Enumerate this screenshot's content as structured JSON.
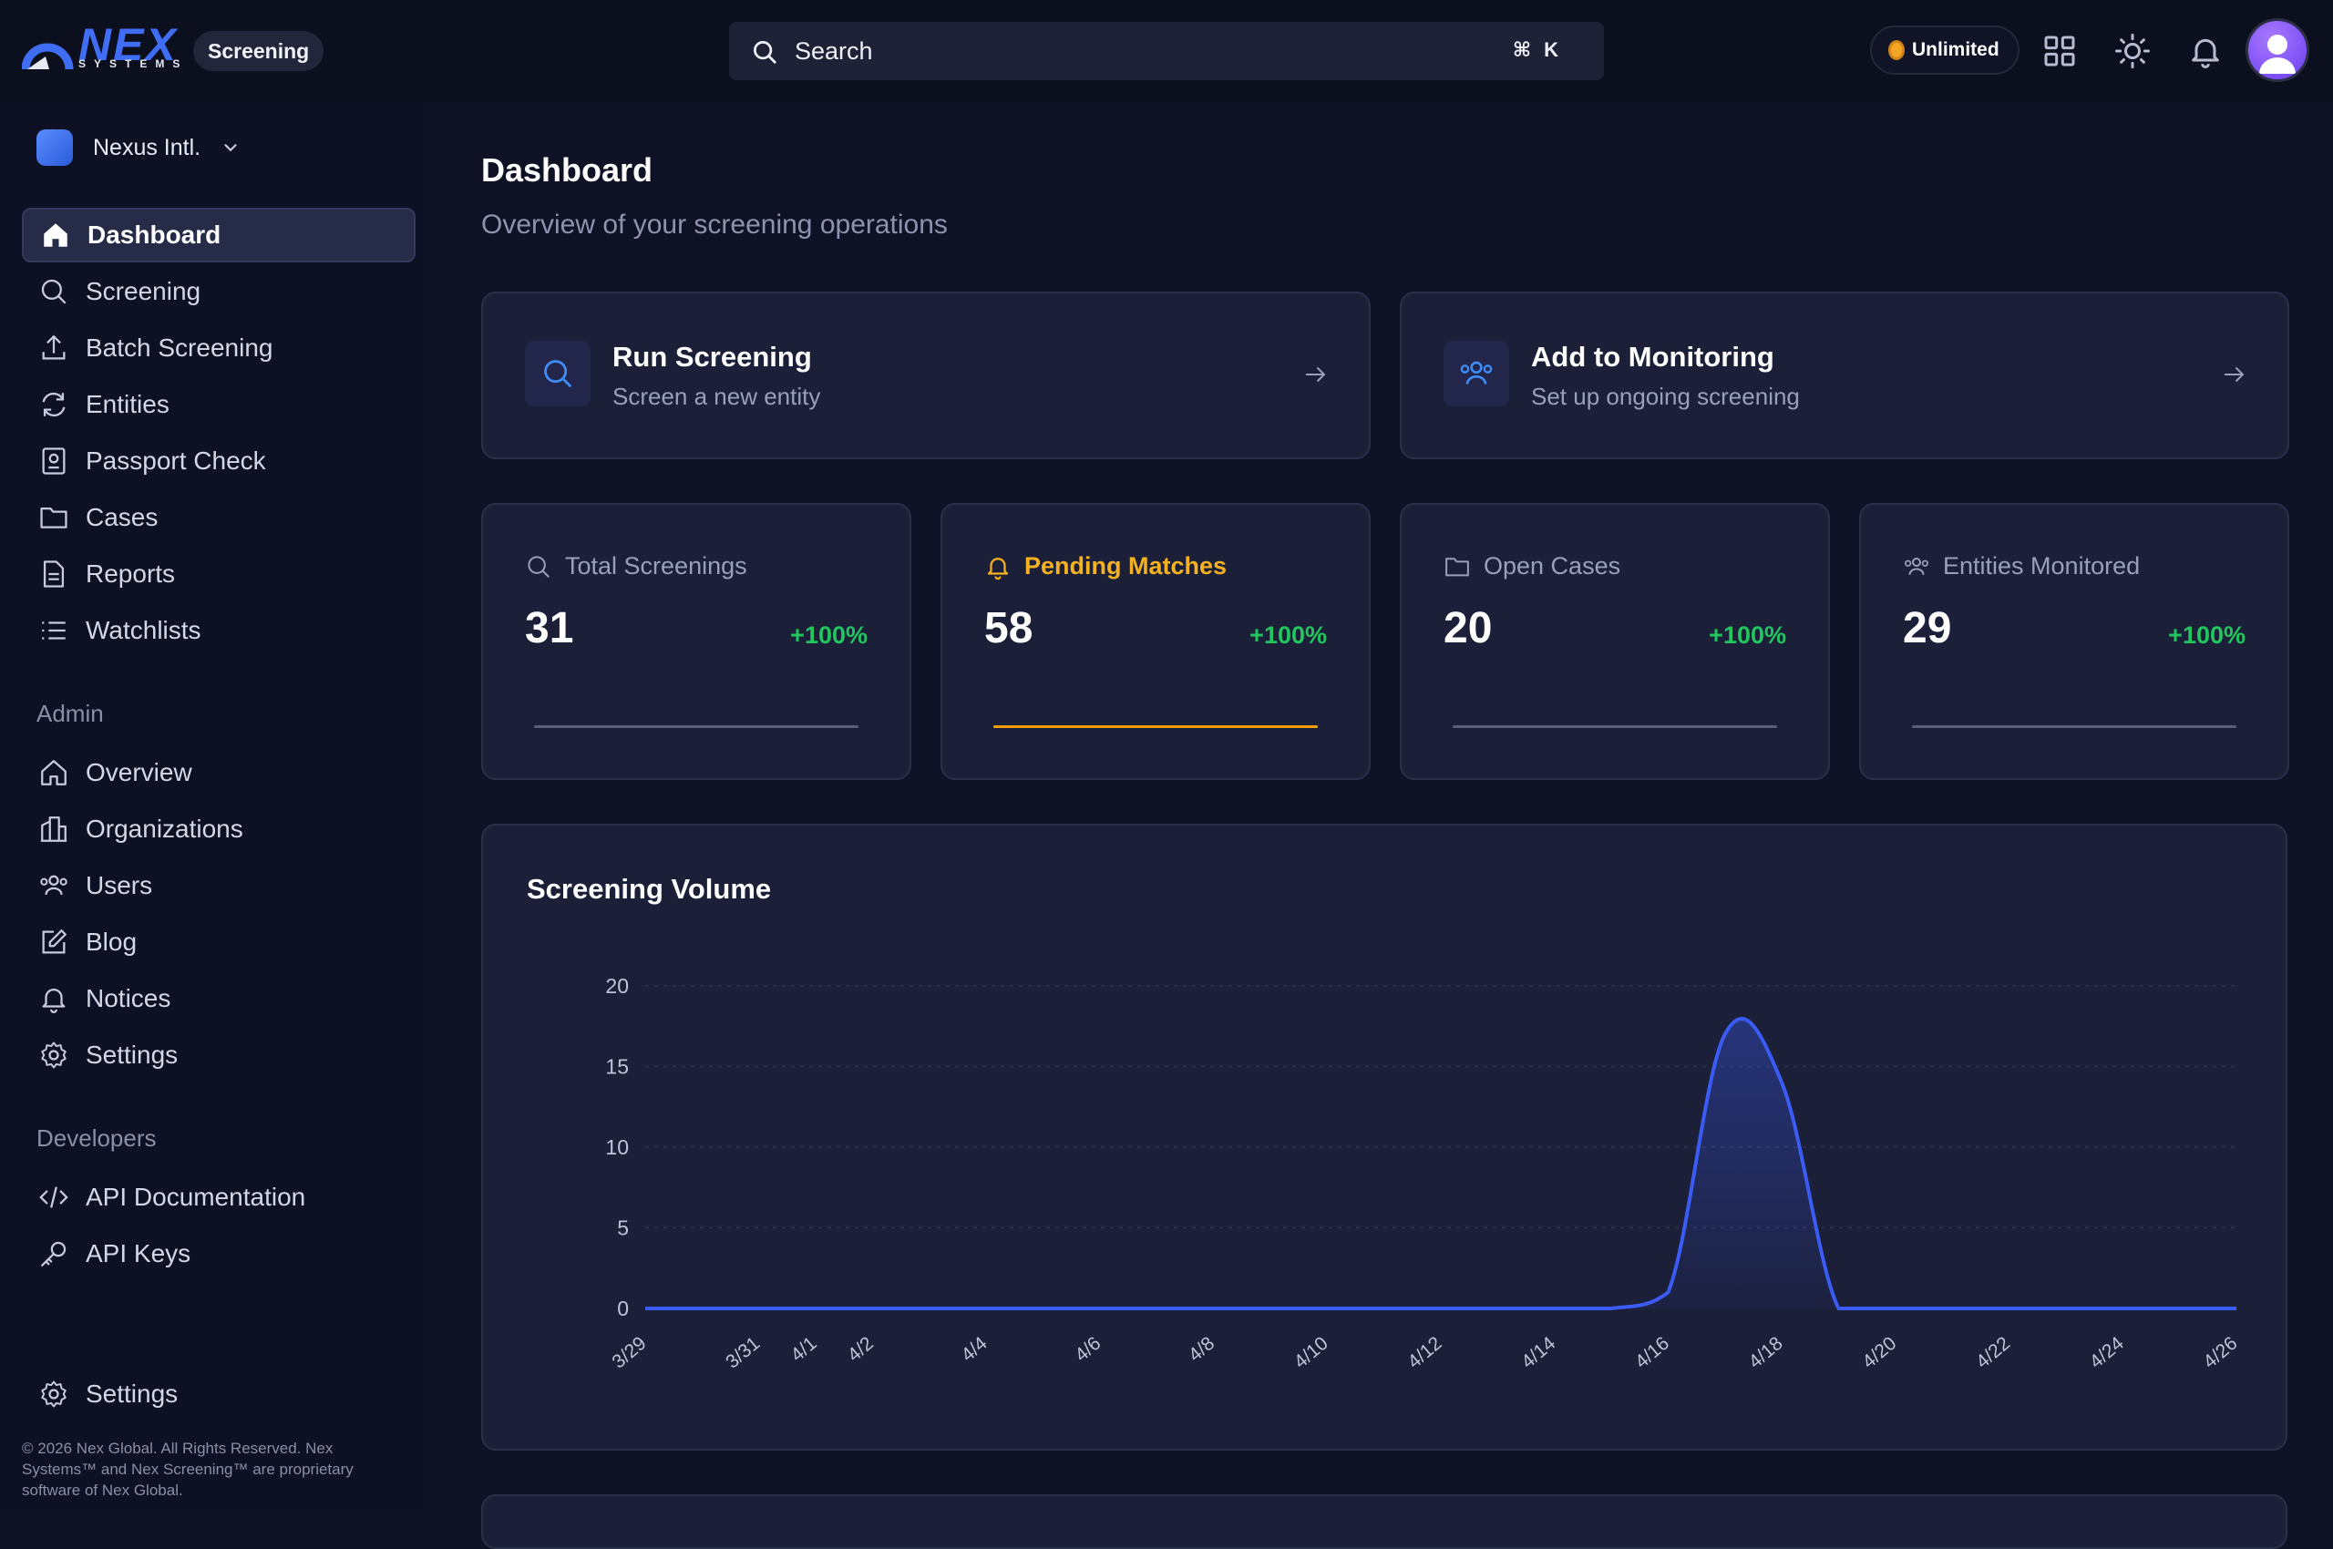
{
  "header": {
    "logo_text": "NEX",
    "logo_sub": "SYSTEMS",
    "product": "Screening",
    "search_placeholder": "Search",
    "shortcut": "⌘K",
    "plan": "Unlimited"
  },
  "sidebar": {
    "org_name": "Nexus Intl.",
    "main": [
      {
        "label": "Dashboard",
        "icon": "home-icon",
        "active": true
      },
      {
        "label": "Screening",
        "icon": "search-icon"
      },
      {
        "label": "Batch Screening",
        "icon": "upload-icon"
      },
      {
        "label": "Entities",
        "icon": "refresh-icon"
      },
      {
        "label": "Passport Check",
        "icon": "passport-icon"
      },
      {
        "label": "Cases",
        "icon": "folder-icon"
      },
      {
        "label": "Reports",
        "icon": "document-icon"
      },
      {
        "label": "Watchlists",
        "icon": "list-icon"
      }
    ],
    "admin_label": "Admin",
    "admin": [
      {
        "label": "Overview",
        "icon": "home-icon"
      },
      {
        "label": "Organizations",
        "icon": "building-icon"
      },
      {
        "label": "Users",
        "icon": "users-icon"
      },
      {
        "label": "Blog",
        "icon": "edit-icon"
      },
      {
        "label": "Notices",
        "icon": "bell-icon"
      },
      {
        "label": "Settings",
        "icon": "gear-icon"
      }
    ],
    "dev_label": "Developers",
    "dev": [
      {
        "label": "API Documentation",
        "icon": "code-icon"
      },
      {
        "label": "API Keys",
        "icon": "key-icon"
      }
    ],
    "bottom_settings": "Settings",
    "footer": "© 2026 Nex Global. All Rights Reserved. Nex Systems™ and Nex Screening™ are proprietary software of Nex Global."
  },
  "main": {
    "title": "Dashboard",
    "subtitle": "Overview of your screening operations",
    "actions": [
      {
        "title": "Run Screening",
        "subtitle": "Screen a new entity",
        "icon": "search-icon"
      },
      {
        "title": "Add to Monitoring",
        "subtitle": "Set up ongoing screening",
        "icon": "users-icon"
      }
    ],
    "stats": [
      {
        "label": "Total Screenings",
        "value": "31",
        "delta": "+100%",
        "icon": "search-icon"
      },
      {
        "label": "Pending Matches",
        "value": "58",
        "delta": "+100%",
        "icon": "bell-icon"
      },
      {
        "label": "Open Cases",
        "value": "20",
        "delta": "+100%",
        "icon": "folder-icon"
      },
      {
        "label": "Entities Monitored",
        "value": "29",
        "delta": "+100%",
        "icon": "users-icon"
      }
    ]
  },
  "colors": {
    "accent": "#3f6ef5",
    "warning": "#f59e0b",
    "positive": "#22c55e",
    "line": "#3b5bf5"
  },
  "chart_data": {
    "type": "area",
    "title": "Screening Volume",
    "x": [
      "3/29",
      "3/30",
      "3/31",
      "4/1",
      "4/2",
      "4/3",
      "4/4",
      "4/5",
      "4/6",
      "4/7",
      "4/8",
      "4/9",
      "4/10",
      "4/11",
      "4/12",
      "4/13",
      "4/14",
      "4/15",
      "4/16",
      "4/17",
      "4/18",
      "4/19",
      "4/20",
      "4/21",
      "4/22",
      "4/23",
      "4/24",
      "4/25",
      "4/26"
    ],
    "x_tick_labels": [
      "3/29",
      "3/31",
      "4/1",
      "4/2",
      "4/4",
      "4/6",
      "4/8",
      "4/10",
      "4/12",
      "4/14",
      "4/16",
      "4/18",
      "4/20",
      "4/22",
      "4/24",
      "4/26"
    ],
    "series": [
      {
        "values": [
          0,
          0,
          0,
          0,
          0,
          0,
          0,
          0,
          0,
          0,
          0,
          0,
          0,
          0,
          0,
          0,
          0,
          0,
          1,
          17,
          14,
          0,
          0,
          0,
          0,
          0,
          0,
          0,
          0
        ]
      }
    ],
    "ylim": [
      0,
      20
    ],
    "yticks": [
      0,
      5,
      10,
      15,
      20
    ],
    "grid": true
  }
}
